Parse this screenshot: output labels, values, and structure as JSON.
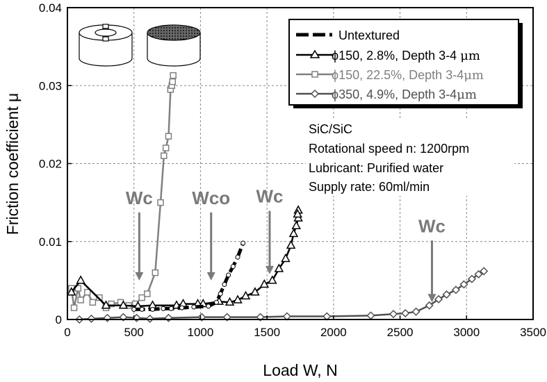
{
  "chart_data": {
    "type": "line",
    "xlabel": "Load W, N",
    "ylabel": "Friction coefficient  μ",
    "xlim": [
      0,
      3500
    ],
    "ylim": [
      0,
      0.04
    ],
    "xticks": [
      0,
      500,
      1000,
      1500,
      2000,
      2500,
      3000,
      3500
    ],
    "yticks": [
      0,
      0.01,
      0.02,
      0.03,
      0.04
    ],
    "xtick_labels": [
      "0",
      "500",
      "1000",
      "1500",
      "2000",
      "2500",
      "3000",
      "3500"
    ],
    "ytick_labels": [
      "0",
      "0.01",
      "0.02",
      "0.03",
      "0.04"
    ],
    "grid": true,
    "legend_position": "top-right",
    "series": [
      {
        "name": "Untextured",
        "style": "dashed-thick",
        "marker": "circle-white",
        "color": "#000000",
        "x": [
          500,
          560,
          640,
          720,
          780,
          860,
          950,
          1060,
          1120,
          1150,
          1180,
          1210,
          1245,
          1280,
          1320
        ],
        "y": [
          0.0013,
          0.0013,
          0.0013,
          0.0014,
          0.0014,
          0.0015,
          0.0016,
          0.0017,
          0.0022,
          0.0033,
          0.0045,
          0.0057,
          0.0068,
          0.008,
          0.0098
        ]
      },
      {
        "name": "φ150, 2.8%, Depth 3-4 μm",
        "label_prefix": "ϕ150, 2.8%, Depth 3-4 ",
        "label_unit": "μm",
        "style": "solid",
        "marker": "triangle",
        "color": "#000000",
        "x": [
          30,
          100,
          290,
          420,
          530,
          640,
          820,
          870,
          980,
          1020,
          1140,
          1220,
          1280,
          1340,
          1410,
          1480,
          1540,
          1590,
          1640,
          1680,
          1700,
          1720,
          1735,
          1735,
          1730
        ],
        "y": [
          0.0035,
          0.005,
          0.0018,
          0.0018,
          0.0017,
          0.0018,
          0.0018,
          0.002,
          0.002,
          0.002,
          0.0023,
          0.0022,
          0.0025,
          0.003,
          0.0035,
          0.0045,
          0.005,
          0.0065,
          0.0078,
          0.0095,
          0.011,
          0.012,
          0.013,
          0.014,
          0.0135
        ]
      },
      {
        "name": "φ150, 22.5%, Depth 3-4 μm",
        "label_prefix": "ϕ150, 22.5%, Depth 3-4",
        "label_unit": "μm",
        "style": "solid",
        "marker": "square",
        "color": "#808080",
        "x": [
          30,
          50,
          80,
          100,
          150,
          190,
          240,
          290,
          330,
          400,
          460,
          510,
          560,
          600,
          660,
          700,
          725,
          740,
          760,
          775,
          785,
          790,
          795
        ],
        "y": [
          0.004,
          0.0015,
          0.004,
          0.0025,
          0.0035,
          0.0022,
          0.0028,
          0.0015,
          0.002,
          0.0022,
          0.0018,
          0.002,
          0.0028,
          0.0033,
          0.006,
          0.015,
          0.021,
          0.022,
          0.0235,
          0.0295,
          0.03,
          0.0305,
          0.0313
        ]
      },
      {
        "name": "φ350, 4.9%, Depth 3-4 μm",
        "label_prefix": "ϕ350, 4.9%, Depth 3-4",
        "label_unit": "μm",
        "style": "solid",
        "marker": "diamond",
        "color": "#505050",
        "x": [
          90,
          180,
          300,
          420,
          520,
          620,
          760,
          1010,
          1200,
          1450,
          1650,
          1950,
          2280,
          2450,
          2540,
          2620,
          2720,
          2790,
          2850,
          2920,
          2980,
          3040,
          3090,
          3130
        ],
        "y": [
          0,
          0.0001,
          0.0002,
          0.0003,
          0.0002,
          0.0001,
          0.0002,
          0.0003,
          0.0003,
          0.0003,
          0.0004,
          0.0004,
          0.0005,
          0.0007,
          0.0008,
          0.001,
          0.0018,
          0.0026,
          0.0032,
          0.0038,
          0.0045,
          0.0052,
          0.0058,
          0.0062
        ]
      }
    ],
    "annotations": [
      {
        "text": "Wc",
        "x": 540,
        "y": 0.0148,
        "arrow_to_y": 0.005
      },
      {
        "text": "Wco",
        "x": 1080,
        "y": 0.0148,
        "arrow_to_y": 0.005
      },
      {
        "text": "Wc",
        "x": 1520,
        "y": 0.015,
        "arrow_to_y": 0.0058
      },
      {
        "text": "Wc",
        "x": 2740,
        "y": 0.0112,
        "arrow_to_y": 0.0022
      }
    ],
    "info_lines": [
      "SiC/SiC",
      "Rotational speed n: 1200rpm",
      "Lubricant: Purified water",
      "Supply rate: 60ml/min"
    ],
    "inset_icons": [
      "ring-specimen-icon",
      "textured-disk-icon"
    ]
  }
}
